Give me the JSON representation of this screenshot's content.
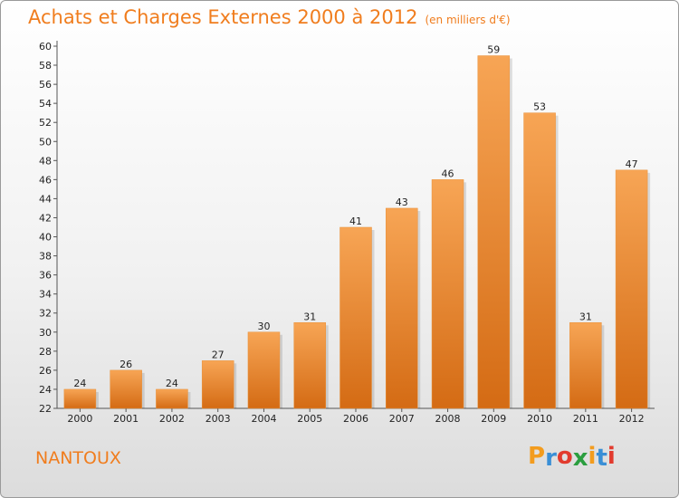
{
  "header": {
    "title": "Achats et Charges Externes 2000 à 2012",
    "subtitle": "(en milliers d'€)"
  },
  "footer": {
    "place": "NANTOUX",
    "logo": [
      "P",
      "r",
      "o",
      "x",
      "i",
      "t",
      "i"
    ],
    "logo_colors": [
      "#f39c1e",
      "#3a8fd6",
      "#e23b2e",
      "#2b9e3f",
      "#f39c1e",
      "#3a8fd6",
      "#e23b2e"
    ]
  },
  "chart_data": {
    "type": "bar",
    "title": "Achats et Charges Externes 2000 à 2012",
    "subtitle": "(en milliers d'€)",
    "categories": [
      "2000",
      "2001",
      "2002",
      "2003",
      "2004",
      "2005",
      "2006",
      "2007",
      "2008",
      "2009",
      "2010",
      "2011",
      "2012"
    ],
    "values": [
      24,
      26,
      24,
      27,
      30,
      31,
      41,
      43,
      46,
      59,
      53,
      31,
      47
    ],
    "ylim": [
      22,
      60
    ],
    "ytick_step": 2,
    "grid": false,
    "bar_color_top": "#f7a555",
    "bar_color_bottom": "#d46b14"
  }
}
